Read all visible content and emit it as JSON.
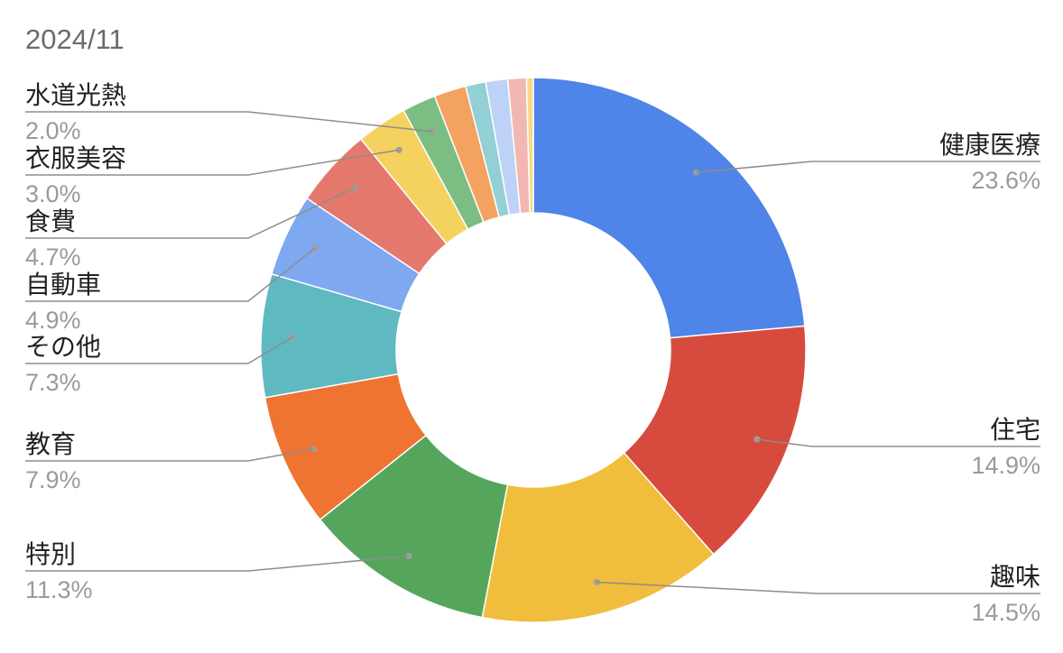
{
  "chart_data": {
    "type": "pie",
    "title": "2024/11",
    "donut": true,
    "slices": [
      {
        "label": "健康医療",
        "percent_label": "23.6%",
        "value": 23.6,
        "color": "#4f84e8"
      },
      {
        "label": "住宅",
        "percent_label": "14.9%",
        "value": 14.9,
        "color": "#d74b3e"
      },
      {
        "label": "趣味",
        "percent_label": "14.5%",
        "value": 14.5,
        "color": "#f0bd3c"
      },
      {
        "label": "特別",
        "percent_label": "11.3%",
        "value": 11.3,
        "color": "#55a65c"
      },
      {
        "label": "教育",
        "percent_label": "7.9%",
        "value": 7.9,
        "color": "#ef7331"
      },
      {
        "label": "その他",
        "percent_label": "7.3%",
        "value": 7.3,
        "color": "#5fb9c1"
      },
      {
        "label": "自動車",
        "percent_label": "4.9%",
        "value": 4.9,
        "color": "#7ea8f0"
      },
      {
        "label": "食費",
        "percent_label": "4.7%",
        "value": 4.7,
        "color": "#e5786d"
      },
      {
        "label": "衣服美容",
        "percent_label": "3.0%",
        "value": 3.0,
        "color": "#f5d160"
      },
      {
        "label": "水道光熱",
        "percent_label": "2.0%",
        "value": 2.0,
        "color": "#7bbd82"
      },
      {
        "value": 1.9,
        "color": "#f3a25f"
      },
      {
        "value": 1.2,
        "color": "#92d0d6"
      },
      {
        "value": 1.3,
        "color": "#bed1f7"
      },
      {
        "value": 1.1,
        "color": "#f2b7b2"
      },
      {
        "value": 0.4,
        "color": "#f9d889"
      }
    ]
  }
}
